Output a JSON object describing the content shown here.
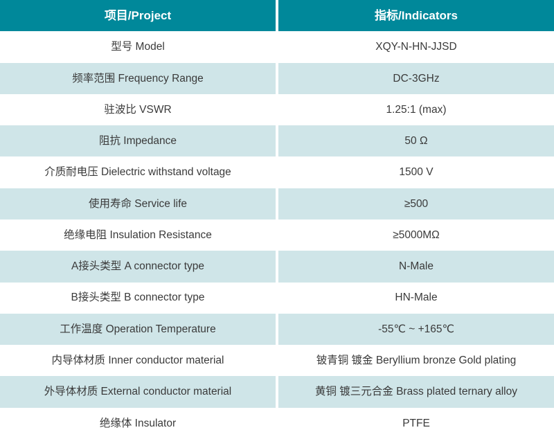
{
  "table": {
    "header": {
      "project_label": "项目/Project",
      "indicators_label": "指标/Indicators"
    },
    "rows": [
      {
        "project": "型号 Model",
        "indicator": "XQY-N-HN-JJSD"
      },
      {
        "project": "频率范围 Frequency Range",
        "indicator": "DC-3GHz"
      },
      {
        "project": "驻波比 VSWR",
        "indicator": "1.25:1 (max)"
      },
      {
        "project": "阻抗 Impedance",
        "indicator": "50 Ω"
      },
      {
        "project": "介质耐电压 Dielectric withstand voltage",
        "indicator": "1500 V"
      },
      {
        "project": "使用寿命 Service life",
        "indicator": "≥500"
      },
      {
        "project": "绝缘电阻 Insulation Resistance",
        "indicator": "≥5000MΩ"
      },
      {
        "project": "A接头类型 A connector type",
        "indicator": "N-Male"
      },
      {
        "project": "B接头类型 B connector type",
        "indicator": "HN-Male"
      },
      {
        "project": "工作温度 Operation Temperature",
        "indicator": "-55℃ ~ +165℃"
      },
      {
        "project": "内导体材质 Inner conductor material",
        "indicator": "铍青铜 镀金 Beryllium bronze Gold plating"
      },
      {
        "project": "外导体材质 External conductor material",
        "indicator": "黄铜 镀三元合金 Brass plated ternary alloy"
      },
      {
        "project": "绝缘体 Insulator",
        "indicator": "PTFE"
      }
    ]
  },
  "colors": {
    "header_bg": "#00889a",
    "header_text": "#ffffff",
    "row_bg": "#ffffff",
    "row_alt_bg": "#cfe5e8",
    "body_text": "#3a3a3a"
  }
}
